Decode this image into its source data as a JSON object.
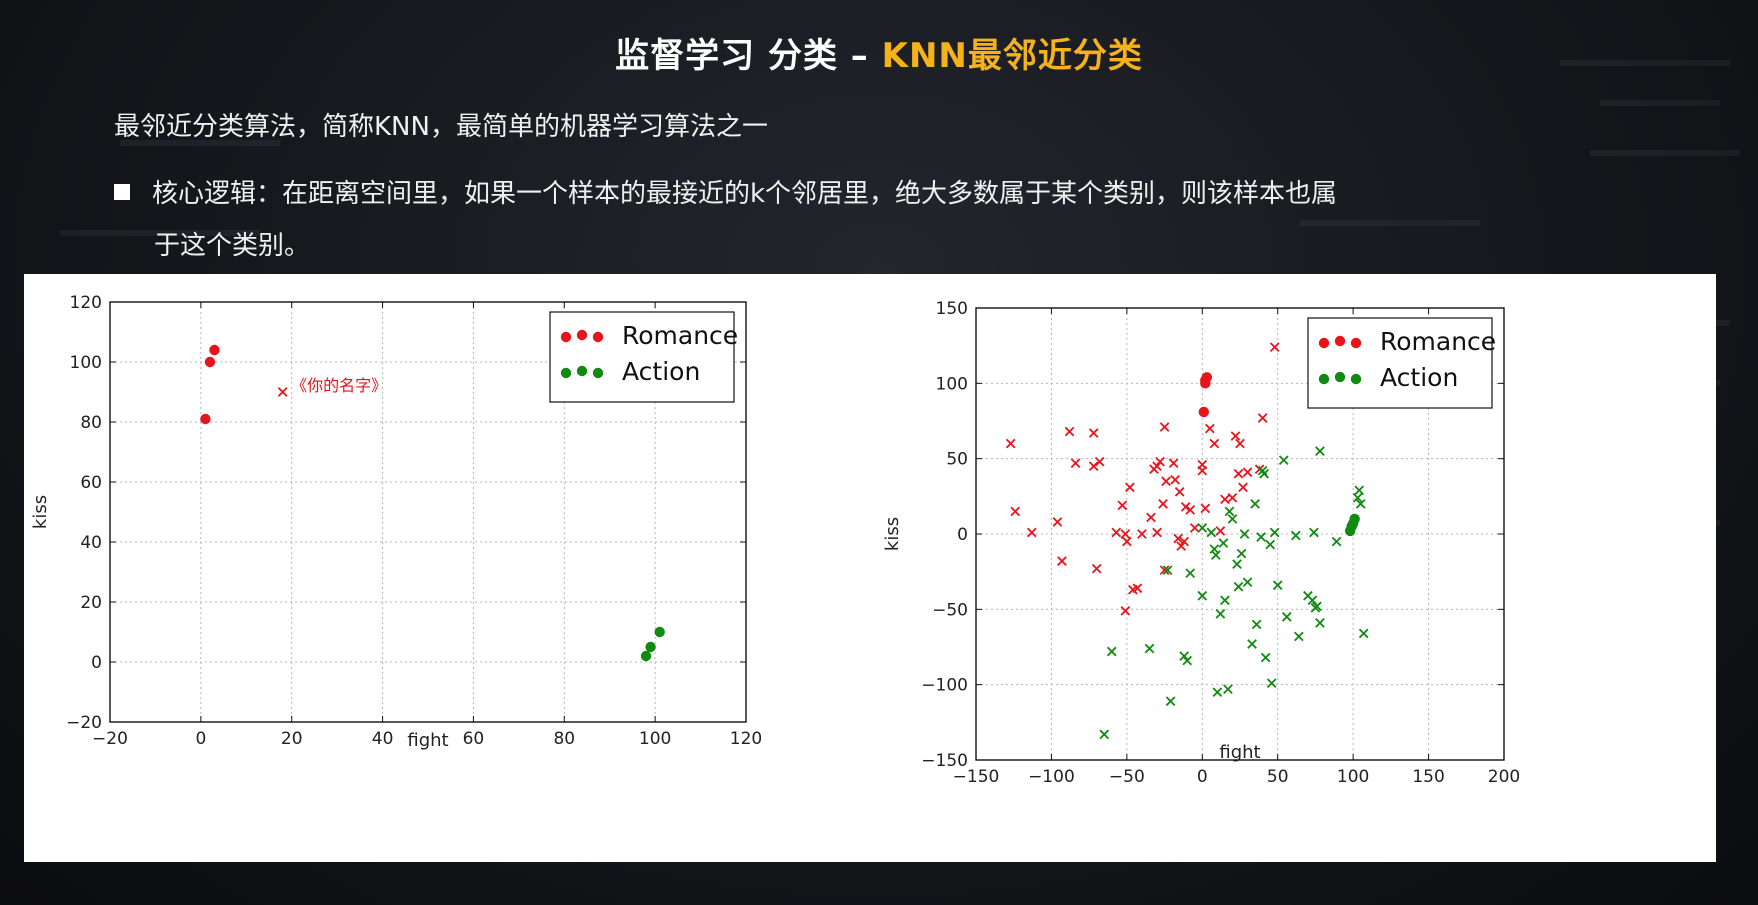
{
  "slide": {
    "title_part1": "监督学习 分类 – ",
    "title_highlight": "KNN最邻近分类",
    "intro": "最邻近分类算法，简称KNN，最简单的机器学习算法之一",
    "bullet_line1": "核心逻辑：在距离空间里，如果一个样本的最接近的k个邻居里，绝大多数属于某个类别，则该样本也属",
    "bullet_line2": "于这个类别。",
    "highlight_color": "#f6b21a"
  },
  "chart_data": [
    {
      "type": "scatter",
      "title": "",
      "xlabel": "fight",
      "ylabel": "kiss",
      "xlim": [
        -20,
        120
      ],
      "ylim": [
        -20,
        120
      ],
      "xticks": [
        -20,
        0,
        20,
        40,
        60,
        80,
        100,
        120
      ],
      "yticks": [
        -20,
        0,
        20,
        40,
        60,
        80,
        100,
        120
      ],
      "xtick_labels": [
        "−20",
        "0",
        "20",
        "40",
        "60",
        "80",
        "100",
        "120"
      ],
      "ytick_labels": [
        "−20",
        "0",
        "20",
        "40",
        "60",
        "80",
        "100",
        "120"
      ],
      "grid": true,
      "legend_position": "top-right",
      "series": [
        {
          "name": "Romance",
          "marker": "o",
          "color": "#e8141c",
          "points": [
            [
              1,
              81
            ],
            [
              2,
              100
            ],
            [
              3,
              104
            ]
          ]
        },
        {
          "name": "Action",
          "marker": "o",
          "color": "#118a11",
          "points": [
            [
              98,
              2
            ],
            [
              99,
              5
            ],
            [
              101,
              10
            ]
          ]
        },
        {
          "marker": "x",
          "color": "#e8141c",
          "points": [
            [
              18,
              90
            ]
          ]
        }
      ],
      "annotations": [
        {
          "text": "《你的名字》",
          "x": 19,
          "y": 90,
          "color": "#e8141c"
        }
      ]
    },
    {
      "type": "scatter",
      "title": "",
      "xlabel": "fight",
      "ylabel": "kiss",
      "xlim": [
        -150,
        200
      ],
      "ylim": [
        -150,
        150
      ],
      "xticks": [
        -150,
        -100,
        -50,
        0,
        50,
        100,
        150,
        200
      ],
      "yticks": [
        -150,
        -100,
        -50,
        0,
        50,
        100,
        150
      ],
      "xtick_labels": [
        "−150",
        "−100",
        "−50",
        "0",
        "50",
        "100",
        "150",
        "200"
      ],
      "ytick_labels": [
        "−150",
        "−100",
        "−50",
        "0",
        "50",
        "100",
        "150"
      ],
      "grid": true,
      "legend_position": "top-right",
      "series": [
        {
          "name": "Romance",
          "marker": "o",
          "color": "#e8141c",
          "points": [
            [
              1,
              81
            ],
            [
              2,
              100
            ],
            [
              3,
              104
            ],
            [
              2,
              102
            ]
          ]
        },
        {
          "name": "Action",
          "marker": "o",
          "color": "#118a11",
          "points": [
            [
              98,
              2
            ],
            [
              99,
              5
            ],
            [
              101,
              10
            ],
            [
              100,
              7
            ]
          ]
        },
        {
          "marker": "x",
          "color": "#e8141c",
          "points": [
            [
              -127,
              60
            ],
            [
              -124,
              15
            ],
            [
              -113,
              1
            ],
            [
              -96,
              8
            ],
            [
              -93,
              -18
            ],
            [
              -88,
              68
            ],
            [
              -84,
              47
            ],
            [
              -72,
              67
            ],
            [
              -70,
              -23
            ],
            [
              -68,
              48
            ],
            [
              -72,
              45
            ],
            [
              -57,
              1
            ],
            [
              -53,
              19
            ],
            [
              -51,
              0
            ],
            [
              -50,
              -5
            ],
            [
              -51,
              -51
            ],
            [
              -48,
              31
            ],
            [
              -46,
              -37
            ],
            [
              -43,
              -36
            ],
            [
              -40,
              0
            ],
            [
              -34,
              11
            ],
            [
              -32,
              43
            ],
            [
              -30,
              45
            ],
            [
              -28,
              48
            ],
            [
              -26,
              20
            ],
            [
              -24,
              35
            ],
            [
              -25,
              -24
            ],
            [
              -25,
              71
            ],
            [
              -19,
              47
            ],
            [
              -18,
              36
            ],
            [
              -16,
              -3
            ],
            [
              -15,
              28
            ],
            [
              -14,
              -8
            ],
            [
              -12,
              -5
            ],
            [
              -11,
              18
            ],
            [
              -8,
              16
            ],
            [
              -5,
              4
            ],
            [
              0,
              42
            ],
            [
              0,
              46
            ],
            [
              2,
              17
            ],
            [
              5,
              70
            ],
            [
              8,
              60
            ],
            [
              12,
              2
            ],
            [
              15,
              23
            ],
            [
              20,
              24
            ],
            [
              22,
              65
            ],
            [
              25,
              60
            ],
            [
              27,
              31
            ],
            [
              30,
              41
            ],
            [
              38,
              43
            ],
            [
              40,
              77
            ],
            [
              48,
              124
            ],
            [
              24,
              40
            ],
            [
              -30,
              1
            ]
          ]
        },
        {
          "marker": "x",
          "color": "#118a11",
          "points": [
            [
              -65,
              -133
            ],
            [
              -60,
              -78
            ],
            [
              -35,
              -76
            ],
            [
              -21,
              -111
            ],
            [
              -23,
              -24
            ],
            [
              -12,
              -81
            ],
            [
              -10,
              -84
            ],
            [
              -8,
              -26
            ],
            [
              0,
              -41
            ],
            [
              0,
              4
            ],
            [
              6,
              1
            ],
            [
              8,
              -10
            ],
            [
              9,
              -14
            ],
            [
              10,
              -105
            ],
            [
              12,
              -53
            ],
            [
              14,
              -6
            ],
            [
              15,
              -44
            ],
            [
              17,
              -103
            ],
            [
              18,
              15
            ],
            [
              20,
              10
            ],
            [
              23,
              -20
            ],
            [
              24,
              -35
            ],
            [
              26,
              -13
            ],
            [
              28,
              0
            ],
            [
              30,
              -32
            ],
            [
              33,
              -73
            ],
            [
              35,
              20
            ],
            [
              36,
              -60
            ],
            [
              39,
              -2
            ],
            [
              40,
              42
            ],
            [
              41,
              40
            ],
            [
              42,
              -82
            ],
            [
              45,
              -7
            ],
            [
              46,
              -99
            ],
            [
              48,
              1
            ],
            [
              50,
              -34
            ],
            [
              54,
              49
            ],
            [
              56,
              -55
            ],
            [
              62,
              -1
            ],
            [
              64,
              -68
            ],
            [
              70,
              -41
            ],
            [
              73,
              -44
            ],
            [
              74,
              1
            ],
            [
              75,
              -49
            ],
            [
              76,
              -48
            ],
            [
              78,
              55
            ],
            [
              78,
              -59
            ],
            [
              89,
              -5
            ],
            [
              103,
              24
            ],
            [
              104,
              29
            ],
            [
              105,
              20
            ],
            [
              107,
              -66
            ]
          ]
        }
      ]
    }
  ]
}
